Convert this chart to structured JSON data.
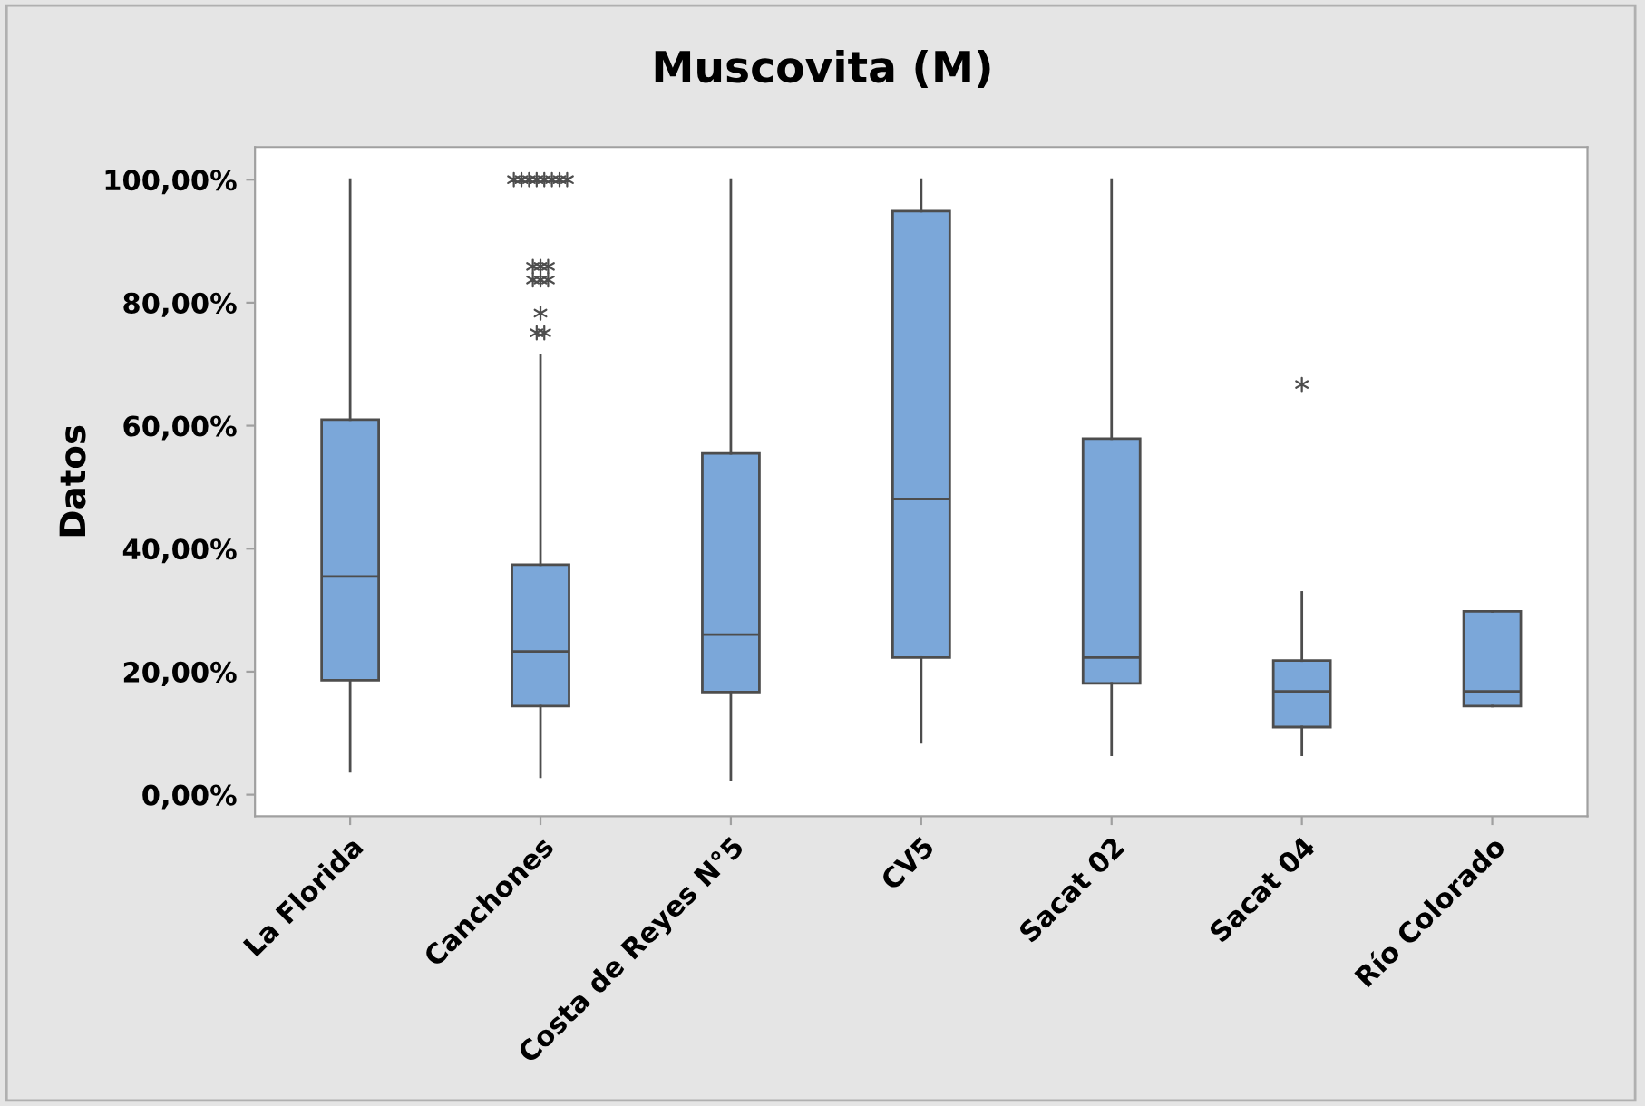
{
  "chart_data": {
    "type": "box",
    "title": "Muscovita (M)",
    "ylabel": "Datos",
    "categories": [
      "La Florida",
      "Canchones",
      "Costa de Reyes N°5",
      "CV5",
      "Sacat 02",
      "Sacat 04",
      "Río Colorado"
    ],
    "color": "#7ba7d9",
    "boxes": [
      {
        "low": 3.8,
        "q1": 18.6,
        "median": 35.5,
        "q3": 61.0,
        "high": 100
      },
      {
        "low": 2.9,
        "q1": 14.4,
        "median": 23.3,
        "q3": 37.4,
        "high": 71.4,
        "outliers": [
          100,
          100,
          100,
          100,
          100,
          100,
          100,
          100,
          85.9,
          85.9,
          85.9,
          83.7,
          83.7,
          83.7,
          78.3,
          75.1,
          75.1
        ]
      },
      {
        "low": 2.4,
        "q1": 16.7,
        "median": 26.0,
        "q3": 55.5,
        "high": 100
      },
      {
        "low": 8.5,
        "q1": 22.3,
        "median": 48.1,
        "q3": 94.9,
        "high": 100
      },
      {
        "low": 6.5,
        "q1": 18.1,
        "median": 22.3,
        "q3": 57.9,
        "high": 100
      },
      {
        "low": 6.5,
        "q1": 11.0,
        "median": 16.8,
        "q3": 21.8,
        "high": 32.9,
        "outliers": [
          66.7
        ]
      },
      {
        "low": 14.4,
        "q1": 14.4,
        "median": 16.8,
        "q3": 29.8,
        "high": 29.8
      }
    ],
    "ylim": [
      -3.5,
      105.3
    ],
    "yticks": [
      {
        "value": 0,
        "label": "0,00%"
      },
      {
        "value": 20,
        "label": "20,00%"
      },
      {
        "value": 40,
        "label": "40,00%"
      },
      {
        "value": 60,
        "label": "60,00%"
      },
      {
        "value": 80,
        "label": "80,00%"
      },
      {
        "value": 100,
        "label": "100,00%"
      }
    ],
    "grid": false
  }
}
